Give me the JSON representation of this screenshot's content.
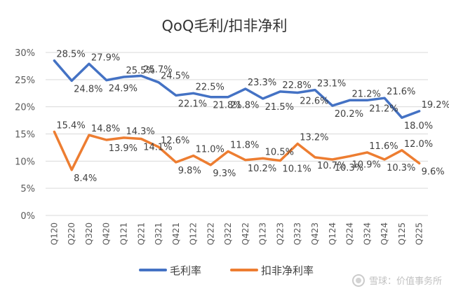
{
  "chart_data": {
    "type": "line",
    "title": "QoQ毛利/扣非净利",
    "xlabel": "",
    "ylabel": "",
    "ylim": [
      0,
      30
    ],
    "yticks": [
      "0%",
      "5%",
      "10%",
      "15%",
      "20%",
      "25%",
      "30%"
    ],
    "categories": [
      "Q120",
      "Q220",
      "Q320",
      "Q420",
      "Q121",
      "Q221",
      "Q321",
      "Q421",
      "Q122",
      "Q222",
      "Q322",
      "Q422",
      "Q123",
      "Q223",
      "Q323",
      "Q423",
      "Q124",
      "Q224",
      "Q324",
      "Q424",
      "Q125",
      "Q225"
    ],
    "series": [
      {
        "name": "毛利率",
        "color": "#4472C4",
        "values": [
          28.5,
          24.8,
          27.9,
          24.9,
          25.5,
          25.7,
          24.5,
          22.1,
          22.5,
          21.8,
          21.8,
          23.3,
          21.5,
          22.8,
          22.6,
          23.1,
          20.2,
          21.2,
          21.2,
          21.6,
          18.0,
          19.2
        ],
        "labels": [
          "28.5%",
          "24.8%",
          "27.9%",
          "24.9%",
          "25.5%",
          "25.7%",
          "24.5%",
          "22.1%",
          "22.5%",
          "21.8%",
          "21.8%",
          "23.3%",
          "21.5%",
          "22.8%",
          "22.6%",
          "23.1%",
          "20.2%",
          "21.2%",
          "21.2%",
          "21.6%",
          "18.0%",
          "19.2%"
        ]
      },
      {
        "name": "扣非净利率",
        "color": "#ED7D31",
        "values": [
          15.4,
          8.4,
          14.8,
          13.9,
          14.3,
          14.1,
          12.6,
          9.8,
          11.0,
          9.3,
          11.8,
          10.2,
          10.5,
          10.1,
          13.2,
          10.7,
          10.3,
          10.9,
          11.6,
          10.3,
          12.0,
          9.6
        ],
        "labels": [
          "15.4%",
          "8.4%",
          "14.8%",
          "13.9%",
          "14.3%",
          "14.1%",
          "12.6%",
          "9.8%",
          "11.0%",
          "9.3%",
          "11.8%",
          "10.2%",
          "10.5%",
          "10.1%",
          "13.2%",
          "10.7%",
          "10.3%",
          "10.9%",
          "11.6%",
          "10.3%",
          "12.0%",
          "9.6%"
        ]
      }
    ],
    "legend": "bottom",
    "grid": true
  },
  "watermark": "雪球：价值事务所"
}
